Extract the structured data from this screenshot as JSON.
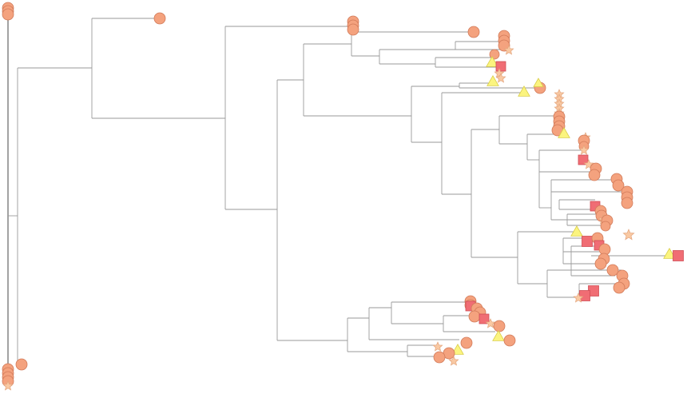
{
  "figure": {
    "type": "phylogenetic-tree",
    "title": "",
    "legend": [],
    "marker_colors": {
      "circle": "#f4a27e",
      "square": "#f06d74",
      "triangle": "#fbf47f",
      "star": "#f9c9a3",
      "branch": "#9a9a9a"
    },
    "marker_types": [
      "circle",
      "square",
      "triangle",
      "star"
    ]
  }
}
